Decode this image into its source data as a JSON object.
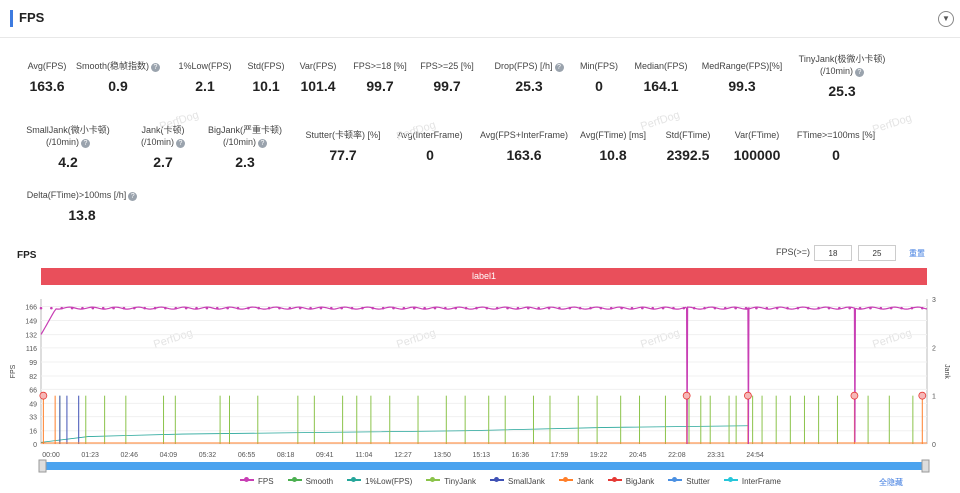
{
  "header": {
    "title": "FPS",
    "collapse_icon": "chevron-down-icon"
  },
  "metrics": [
    {
      "label": "Avg(FPS)",
      "value": "163.6",
      "help": false
    },
    {
      "label": "Smooth(稳帧指数)",
      "value": "0.9",
      "help": true
    },
    {
      "label": "1%Low(FPS)",
      "value": "2.1",
      "help": false
    },
    {
      "label": "Std(FPS)",
      "value": "10.1",
      "help": false
    },
    {
      "label": "Var(FPS)",
      "value": "101.4",
      "help": false
    },
    {
      "label": "FPS>=18 [%]",
      "value": "99.7",
      "help": false
    },
    {
      "label": "FPS>=25 [%]",
      "value": "99.7",
      "help": false
    },
    {
      "label": "Drop(FPS) [/h]",
      "value": "25.3",
      "help": true
    },
    {
      "label": "Min(FPS)",
      "value": "0",
      "help": false
    },
    {
      "label": "Median(FPS)",
      "value": "164.1",
      "help": false
    },
    {
      "label": "MedRange(FPS)[%]",
      "value": "99.3",
      "help": false
    },
    {
      "label": "TinyJank(极微小卡顿)",
      "label2": "(/10min)",
      "value": "25.3",
      "help": true
    },
    {
      "label": "SmallJank(微小卡顿)",
      "label2": "(/10min)",
      "value": "4.2",
      "help": true
    },
    {
      "label": "Jank(卡顿)",
      "label2": "(/10min)",
      "value": "2.7",
      "help": true
    },
    {
      "label": "BigJank(严重卡顿)",
      "label2": "(/10min)",
      "value": "2.3",
      "help": true
    },
    {
      "label": "Stutter(卡顿率) [%]",
      "value": "77.7",
      "help": false
    },
    {
      "label": "Avg(InterFrame)",
      "value": "0",
      "help": false
    },
    {
      "label": "Avg(FPS+InterFrame)",
      "value": "163.6",
      "help": false
    },
    {
      "label": "Avg(FTime) [ms]",
      "value": "10.8",
      "help": false
    },
    {
      "label": "Std(FTime)",
      "value": "2392.5",
      "help": false
    },
    {
      "label": "Var(FTime)",
      "value": "100000",
      "help": false
    },
    {
      "label": "FTime>=100ms [%]",
      "value": "0",
      "help": false
    },
    {
      "label": "Delta(FTime)>100ms [/h]",
      "value": "13.8",
      "help": true
    }
  ],
  "watermark": "PerfDog",
  "chart": {
    "title": "FPS",
    "filter_label": "FPS(>=)",
    "filter_low": "18",
    "filter_high": "25",
    "reset_label": "重置",
    "label_bar": "label1",
    "hide_all": "全隐藏"
  },
  "chart_data": {
    "type": "line",
    "x_ticks": [
      "00:00",
      "01:23",
      "02:46",
      "04:09",
      "05:32",
      "06:55",
      "08:18",
      "09:41",
      "11:04",
      "12:27",
      "13:50",
      "15:13",
      "16:36",
      "17:59",
      "19:22",
      "20:45",
      "22:08",
      "23:31",
      "24:54"
    ],
    "y_left_label": "FPS",
    "y_left_ticks": [
      0,
      16,
      33,
      49,
      66,
      82,
      99,
      116,
      132,
      149,
      166
    ],
    "y_left_lim": [
      0,
      175
    ],
    "y_right_label": "Jank",
    "y_right_ticks": [
      0,
      1,
      2,
      3
    ],
    "y_right_lim": [
      0,
      3
    ],
    "duration_sec": 1560,
    "series": [
      {
        "name": "FPS",
        "color": "#c83eb4",
        "baseline": 164,
        "dips": [
          [
            1370,
            0
          ],
          [
            1500,
            0
          ],
          [
            1726,
            2
          ],
          [
            20,
            132
          ]
        ]
      },
      {
        "name": "Smooth",
        "color": "#4caf50"
      },
      {
        "name": "1%Low(FPS)",
        "color": "#26a69a",
        "points": [
          [
            0,
            2
          ],
          [
            100,
            9
          ],
          [
            300,
            12
          ],
          [
            600,
            14
          ],
          [
            900,
            16
          ],
          [
            1200,
            20
          ],
          [
            1500,
            22
          ]
        ]
      },
      {
        "name": "TinyJank",
        "color": "#8bc34a",
        "spikes": [
          40,
          95,
          135,
          180,
          260,
          285,
          380,
          400,
          460,
          545,
          580,
          640,
          670,
          700,
          740,
          800,
          860,
          900,
          950,
          985,
          1045,
          1080,
          1140,
          1180,
          1230,
          1270,
          1325,
          1375,
          1400,
          1420,
          1460,
          1475,
          1510,
          1530,
          1560,
          1590,
          1620,
          1650,
          1690,
          1755,
          1800,
          1850
        ]
      },
      {
        "name": "SmallJank",
        "color": "#3f51b5",
        "spikes": [
          40,
          55,
          80
        ]
      },
      {
        "name": "Jank",
        "color": "#ff7f2a",
        "spikes": [
          5,
          30,
          1370,
          1500,
          1726,
          1870
        ]
      },
      {
        "name": "BigJank",
        "color": "#e53935",
        "spikes": [
          5,
          1370,
          1500,
          1726,
          1870
        ]
      },
      {
        "name": "Stutter",
        "color": "#4a90e2"
      },
      {
        "name": "InterFrame",
        "color": "#26c6da"
      }
    ]
  }
}
